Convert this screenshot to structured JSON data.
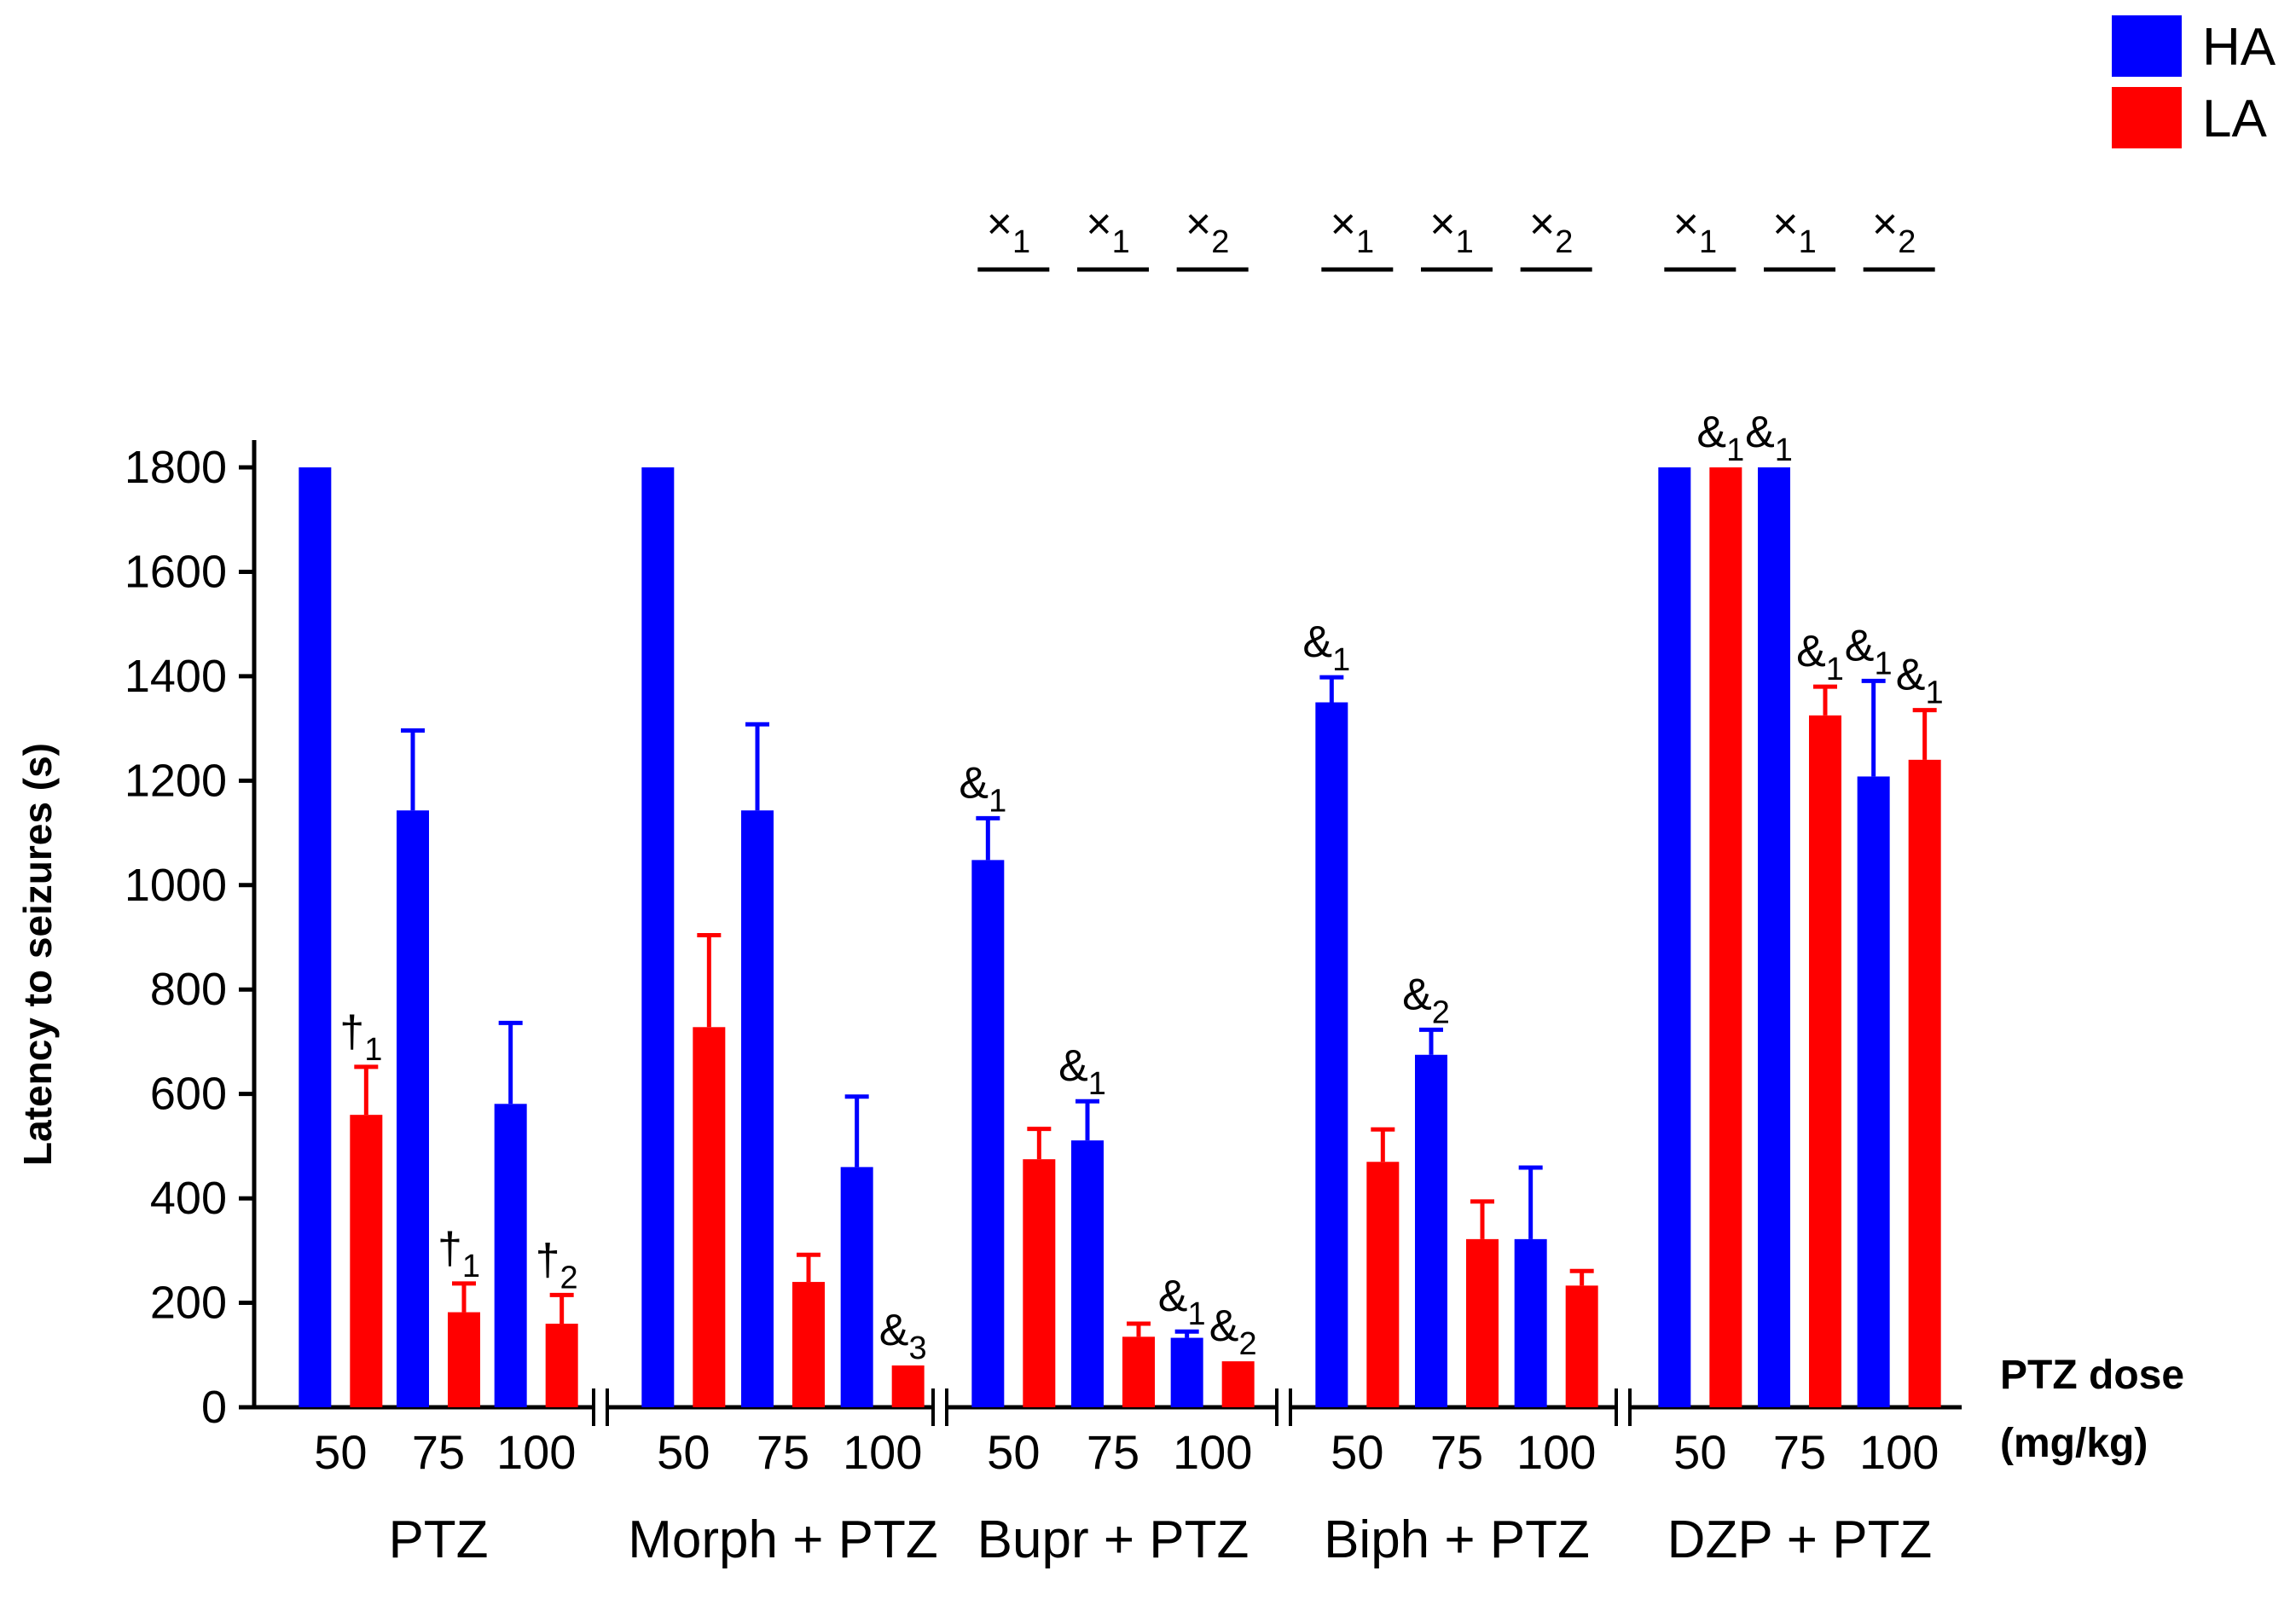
{
  "chart_data": {
    "type": "bar",
    "ylabel": "Latency to seizures (s)",
    "ylim": [
      0,
      1800
    ],
    "yticks": [
      "0",
      "200",
      "400",
      "600",
      "800",
      "1000",
      "1200",
      "1400",
      "1600",
      "1800"
    ],
    "x_title": [
      "PTZ dose",
      "(mg/kg)"
    ],
    "legend": [
      {
        "name": "HA",
        "color": "#0000ff"
      },
      {
        "name": "LA",
        "color": "#ff0000"
      }
    ],
    "groups": [
      {
        "label": "PTZ",
        "doses": [
          {
            "dose": "50",
            "HA": 1800,
            "HA_err": 0,
            "LA": 560,
            "LA_err": 92,
            "LA_annot": "†",
            "LA_sub": "1"
          },
          {
            "dose": "75",
            "HA": 1143,
            "HA_err": 153,
            "LA": 182,
            "LA_err": 55,
            "LA_annot": "†",
            "LA_sub": "1"
          },
          {
            "dose": "100",
            "HA": 581,
            "HA_err": 155,
            "LA": 160,
            "LA_err": 55,
            "LA_annot": "†",
            "LA_sub": "2"
          }
        ]
      },
      {
        "label": "Morph + PTZ",
        "doses": [
          {
            "dose": "50",
            "HA": 1800,
            "HA_err": 0,
            "LA": 728,
            "LA_err": 176
          },
          {
            "dose": "75",
            "HA": 1143,
            "HA_err": 165,
            "LA": 240,
            "LA_err": 52
          },
          {
            "dose": "100",
            "HA": 460,
            "HA_err": 135,
            "LA": 80,
            "LA_err": 0,
            "LA_annot": "&",
            "LA_sub": "3"
          }
        ]
      },
      {
        "label": "Bupr + PTZ",
        "doses": [
          {
            "dose": "50",
            "HA": 1048,
            "HA_err": 80,
            "HA_annot": "&",
            "HA_sub": "1",
            "LA": 475,
            "LA_err": 58
          },
          {
            "dose": "75",
            "HA": 511,
            "HA_err": 75,
            "HA_annot": "&",
            "HA_sub": "1",
            "LA": 135,
            "LA_err": 25
          },
          {
            "dose": "100",
            "HA": 133,
            "HA_err": 12,
            "HA_annot": "&",
            "HA_sub": "1",
            "LA": 88,
            "LA_err": 0,
            "LA_annot": "&",
            "LA_sub": "2"
          }
        ]
      },
      {
        "label": "Biph + PTZ",
        "doses": [
          {
            "dose": "50",
            "HA": 1350,
            "HA_err": 48,
            "HA_annot": "&",
            "HA_sub": "1",
            "LA": 470,
            "LA_err": 62
          },
          {
            "dose": "75",
            "HA": 675,
            "HA_err": 48,
            "HA_annot": "&",
            "HA_sub": "2",
            "LA": 322,
            "LA_err": 72
          },
          {
            "dose": "100",
            "HA": 322,
            "HA_err": 137,
            "LA": 233,
            "LA_err": 28
          }
        ]
      },
      {
        "label": "DZP + PTZ",
        "doses": [
          {
            "dose": "50",
            "HA": 1800,
            "HA_err": 0,
            "LA": 1800,
            "LA_err": 0,
            "LA_annot": "&",
            "LA_sub": "1"
          },
          {
            "dose": "75",
            "HA": 1800,
            "HA_err": 0,
            "HA_annot": "&",
            "HA_sub": "1",
            "LA": 1325,
            "LA_err": 55,
            "LA_annot": "&",
            "LA_sub": "1"
          },
          {
            "dose": "100",
            "HA": 1208,
            "HA_err": 183,
            "HA_annot": "&",
            "HA_sub": "1",
            "LA": 1240,
            "LA_err": 95,
            "LA_annot": "&",
            "LA_sub": "1"
          }
        ]
      }
    ],
    "comparison_marks": [
      {
        "group": 2,
        "dose": 0,
        "symbol": "×",
        "sub": "1"
      },
      {
        "group": 2,
        "dose": 1,
        "symbol": "×",
        "sub": "1"
      },
      {
        "group": 2,
        "dose": 2,
        "symbol": "×",
        "sub": "2"
      },
      {
        "group": 3,
        "dose": 0,
        "symbol": "×",
        "sub": "1"
      },
      {
        "group": 3,
        "dose": 1,
        "symbol": "×",
        "sub": "1"
      },
      {
        "group": 3,
        "dose": 2,
        "symbol": "×",
        "sub": "2"
      },
      {
        "group": 4,
        "dose": 0,
        "symbol": "×",
        "sub": "1"
      },
      {
        "group": 4,
        "dose": 1,
        "symbol": "×",
        "sub": "1"
      },
      {
        "group": 4,
        "dose": 2,
        "symbol": "×",
        "sub": "2"
      }
    ]
  }
}
